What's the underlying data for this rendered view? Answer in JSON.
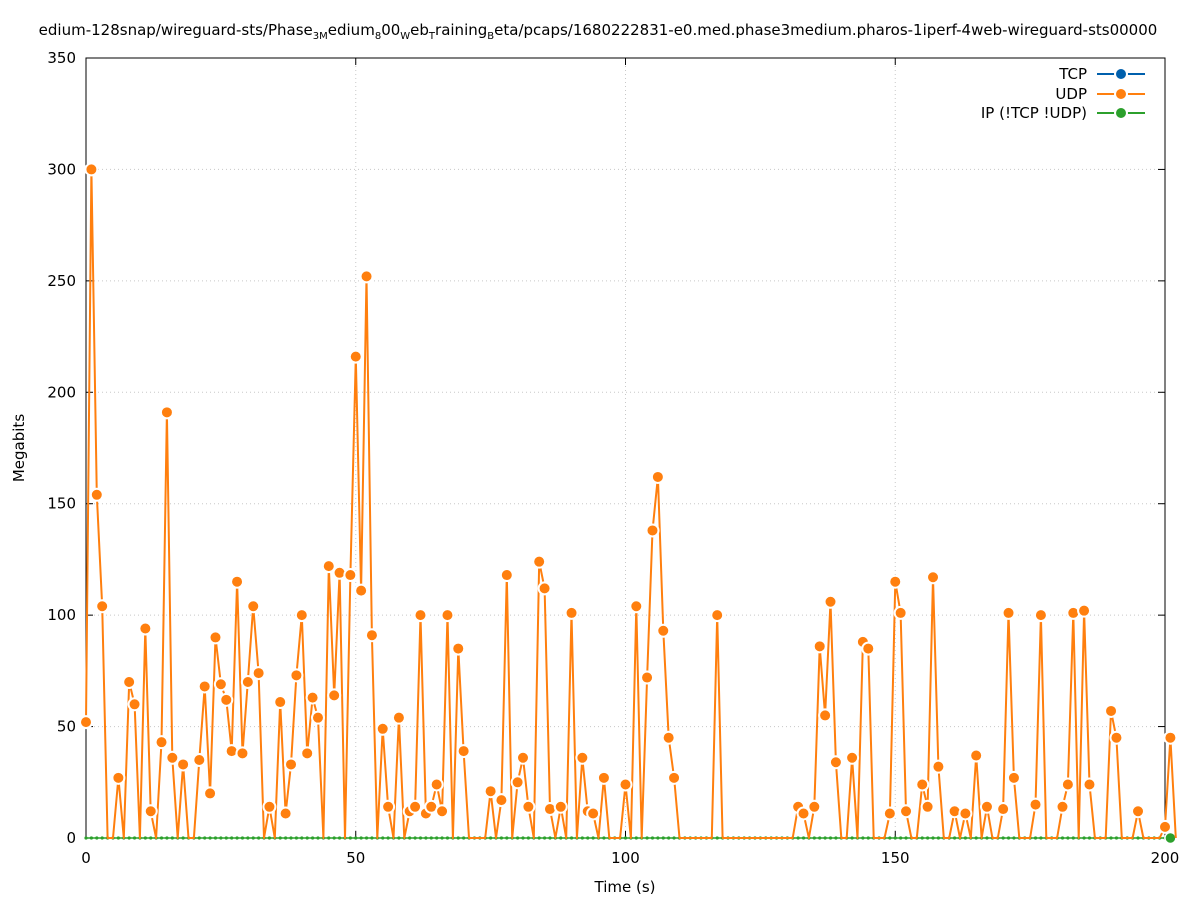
{
  "chart_data": {
    "type": "line",
    "title_parts": [
      {
        "t": "edium-128snap/wireguard-sts/Phase",
        "sub": false
      },
      {
        "t": "3M",
        "sub": true
      },
      {
        "t": "edium",
        "sub": false
      },
      {
        "t": "8",
        "sub": true
      },
      {
        "t": "00",
        "sub": false
      },
      {
        "t": "W",
        "sub": true
      },
      {
        "t": "eb",
        "sub": false
      },
      {
        "t": "T",
        "sub": true
      },
      {
        "t": "raining",
        "sub": false
      },
      {
        "t": "B",
        "sub": true
      },
      {
        "t": "eta/pcaps/1680222831-e0.med.phase3medium.pharos-1iperf-4web-wireguard-sts00000",
        "sub": false
      }
    ],
    "xlabel": "Time (s)",
    "ylabel": "Megabits",
    "xlim": [
      0,
      200
    ],
    "ylim": [
      0,
      350
    ],
    "xticks": [
      0,
      50,
      100,
      150,
      200
    ],
    "yticks": [
      0,
      50,
      100,
      150,
      200,
      250,
      300,
      350
    ],
    "grid": true,
    "legend_position": "top-right",
    "series": [
      {
        "name": "TCP",
        "color": "#0060ad",
        "points": []
      },
      {
        "name": "UDP",
        "color": "#ff7f0e",
        "points": [
          [
            0,
            52
          ],
          [
            1,
            300
          ],
          [
            2,
            154
          ],
          [
            3,
            104
          ],
          [
            4,
            0
          ],
          [
            5,
            0
          ],
          [
            6,
            27
          ],
          [
            7,
            0
          ],
          [
            8,
            70
          ],
          [
            9,
            60
          ],
          [
            10,
            0
          ],
          [
            11,
            94
          ],
          [
            12,
            12
          ],
          [
            13,
            0
          ],
          [
            14,
            43
          ],
          [
            15,
            191
          ],
          [
            16,
            36
          ],
          [
            17,
            0
          ],
          [
            18,
            33
          ],
          [
            19,
            0
          ],
          [
            20,
            0
          ],
          [
            21,
            35
          ],
          [
            22,
            68
          ],
          [
            23,
            20
          ],
          [
            24,
            90
          ],
          [
            25,
            69
          ],
          [
            26,
            62
          ],
          [
            27,
            39
          ],
          [
            28,
            115
          ],
          [
            29,
            38
          ],
          [
            30,
            70
          ],
          [
            31,
            104
          ],
          [
            32,
            74
          ],
          [
            33,
            0
          ],
          [
            34,
            14
          ],
          [
            35,
            0
          ],
          [
            36,
            61
          ],
          [
            37,
            11
          ],
          [
            38,
            33
          ],
          [
            39,
            73
          ],
          [
            40,
            100
          ],
          [
            41,
            38
          ],
          [
            42,
            63
          ],
          [
            43,
            54
          ],
          [
            44,
            0
          ],
          [
            45,
            122
          ],
          [
            46,
            64
          ],
          [
            47,
            119
          ],
          [
            48,
            0
          ],
          [
            49,
            118
          ],
          [
            50,
            216
          ],
          [
            51,
            111
          ],
          [
            52,
            252
          ],
          [
            53,
            91
          ],
          [
            54,
            0
          ],
          [
            55,
            49
          ],
          [
            56,
            14
          ],
          [
            57,
            0
          ],
          [
            58,
            54
          ],
          [
            59,
            0
          ],
          [
            60,
            12
          ],
          [
            61,
            14
          ],
          [
            62,
            100
          ],
          [
            63,
            11
          ],
          [
            64,
            14
          ],
          [
            65,
            24
          ],
          [
            66,
            12
          ],
          [
            67,
            100
          ],
          [
            68,
            0
          ],
          [
            69,
            85
          ],
          [
            70,
            39
          ],
          [
            71,
            0
          ],
          [
            72,
            0
          ],
          [
            73,
            0
          ],
          [
            74,
            0
          ],
          [
            75,
            21
          ],
          [
            76,
            0
          ],
          [
            77,
            17
          ],
          [
            78,
            118
          ],
          [
            79,
            0
          ],
          [
            80,
            25
          ],
          [
            81,
            36
          ],
          [
            82,
            14
          ],
          [
            83,
            0
          ],
          [
            84,
            124
          ],
          [
            85,
            112
          ],
          [
            86,
            13
          ],
          [
            87,
            0
          ],
          [
            88,
            14
          ],
          [
            89,
            0
          ],
          [
            90,
            101
          ],
          [
            91,
            0
          ],
          [
            92,
            36
          ],
          [
            93,
            12
          ],
          [
            94,
            11
          ],
          [
            95,
            0
          ],
          [
            96,
            27
          ],
          [
            97,
            0
          ],
          [
            98,
            0
          ],
          [
            99,
            0
          ],
          [
            100,
            24
          ],
          [
            101,
            0
          ],
          [
            102,
            104
          ],
          [
            103,
            0
          ],
          [
            104,
            72
          ],
          [
            105,
            138
          ],
          [
            106,
            162
          ],
          [
            107,
            93
          ],
          [
            108,
            45
          ],
          [
            109,
            27
          ],
          [
            110,
            0
          ],
          [
            111,
            0
          ],
          [
            112,
            0
          ],
          [
            113,
            0
          ],
          [
            114,
            0
          ],
          [
            115,
            0
          ],
          [
            116,
            0
          ],
          [
            117,
            100
          ],
          [
            118,
            0
          ],
          [
            119,
            0
          ],
          [
            120,
            0
          ],
          [
            121,
            0
          ],
          [
            122,
            0
          ],
          [
            123,
            0
          ],
          [
            124,
            0
          ],
          [
            125,
            0
          ],
          [
            126,
            0
          ],
          [
            127,
            0
          ],
          [
            128,
            0
          ],
          [
            129,
            0
          ],
          [
            130,
            0
          ],
          [
            131,
            0
          ],
          [
            132,
            14
          ],
          [
            133,
            11
          ],
          [
            134,
            0
          ],
          [
            135,
            14
          ],
          [
            136,
            86
          ],
          [
            137,
            55
          ],
          [
            138,
            106
          ],
          [
            139,
            34
          ],
          [
            140,
            0
          ],
          [
            141,
            0
          ],
          [
            142,
            36
          ],
          [
            143,
            0
          ],
          [
            144,
            88
          ],
          [
            145,
            85
          ],
          [
            146,
            0
          ],
          [
            147,
            0
          ],
          [
            148,
            0
          ],
          [
            149,
            11
          ],
          [
            150,
            115
          ],
          [
            151,
            101
          ],
          [
            152,
            12
          ],
          [
            153,
            0
          ],
          [
            154,
            0
          ],
          [
            155,
            24
          ],
          [
            156,
            14
          ],
          [
            157,
            117
          ],
          [
            158,
            32
          ],
          [
            159,
            0
          ],
          [
            160,
            0
          ],
          [
            161,
            12
          ],
          [
            162,
            0
          ],
          [
            163,
            11
          ],
          [
            164,
            0
          ],
          [
            165,
            37
          ],
          [
            166,
            0
          ],
          [
            167,
            14
          ],
          [
            168,
            0
          ],
          [
            169,
            0
          ],
          [
            170,
            13
          ],
          [
            171,
            101
          ],
          [
            172,
            27
          ],
          [
            173,
            0
          ],
          [
            174,
            0
          ],
          [
            175,
            0
          ],
          [
            176,
            15
          ],
          [
            177,
            100
          ],
          [
            178,
            0
          ],
          [
            179,
            0
          ],
          [
            180,
            0
          ],
          [
            181,
            14
          ],
          [
            182,
            24
          ],
          [
            183,
            101
          ],
          [
            184,
            0
          ],
          [
            185,
            102
          ],
          [
            186,
            24
          ],
          [
            187,
            0
          ],
          [
            188,
            0
          ],
          [
            189,
            0
          ],
          [
            190,
            57
          ],
          [
            191,
            45
          ],
          [
            192,
            0
          ],
          [
            193,
            0
          ],
          [
            194,
            0
          ],
          [
            195,
            12
          ],
          [
            196,
            0
          ],
          [
            197,
            0
          ],
          [
            198,
            0
          ],
          [
            199,
            0
          ],
          [
            200,
            5
          ],
          [
            201,
            45
          ],
          [
            202,
            0
          ]
        ]
      },
      {
        "name": "IP (!TCP  !UDP)",
        "color": "#2ca02c",
        "zero_line": true,
        "last_x": 201
      }
    ]
  }
}
